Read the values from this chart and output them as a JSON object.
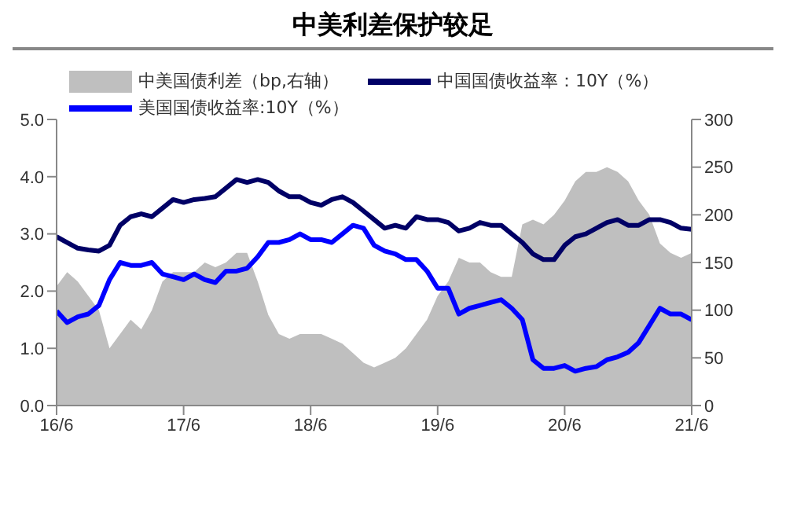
{
  "chart_data": {
    "type": "line",
    "title": "中美利差保护较足",
    "categories": [
      "16/6",
      null,
      null,
      null,
      null,
      null,
      null,
      null,
      null,
      null,
      null,
      null,
      "17/6",
      null,
      null,
      null,
      null,
      null,
      null,
      null,
      null,
      null,
      null,
      null,
      "18/6",
      null,
      null,
      null,
      null,
      null,
      null,
      null,
      null,
      null,
      null,
      null,
      "19/6",
      null,
      null,
      null,
      null,
      null,
      null,
      null,
      null,
      null,
      null,
      null,
      "20/6",
      null,
      null,
      null,
      null,
      null,
      null,
      null,
      null,
      null,
      null,
      null,
      "21/6"
    ],
    "series": [
      {
        "name": "中美国债利差（bp,右轴）",
        "type": "area",
        "axis": "y2",
        "color": "#bfbfbf",
        "values": [
          125,
          140,
          130,
          115,
          100,
          60,
          75,
          90,
          80,
          100,
          130,
          140,
          140,
          140,
          150,
          145,
          150,
          160,
          160,
          130,
          95,
          75,
          70,
          75,
          75,
          75,
          70,
          65,
          55,
          45,
          40,
          45,
          50,
          60,
          75,
          90,
          115,
          130,
          155,
          150,
          150,
          140,
          135,
          135,
          190,
          195,
          190,
          200,
          215,
          235,
          245,
          245,
          250,
          245,
          235,
          215,
          200,
          170,
          160,
          155,
          160
        ]
      },
      {
        "name": "中国国债收益率：10Y（%）",
        "color": "#000066",
        "values": [
          2.95,
          2.85,
          2.75,
          2.72,
          2.7,
          2.8,
          3.15,
          3.3,
          3.35,
          3.3,
          3.45,
          3.6,
          3.55,
          3.6,
          3.62,
          3.65,
          3.8,
          3.95,
          3.9,
          3.95,
          3.9,
          3.75,
          3.65,
          3.65,
          3.55,
          3.5,
          3.6,
          3.65,
          3.55,
          3.4,
          3.25,
          3.1,
          3.15,
          3.1,
          3.3,
          3.25,
          3.25,
          3.2,
          3.05,
          3.1,
          3.2,
          3.15,
          3.15,
          3.0,
          2.85,
          2.65,
          2.55,
          2.55,
          2.8,
          2.95,
          3.0,
          3.1,
          3.2,
          3.25,
          3.15,
          3.15,
          3.25,
          3.25,
          3.2,
          3.1,
          3.08
        ]
      },
      {
        "name": "美国国债收益率:10Y（%）",
        "color": "#0000ff",
        "values": [
          1.65,
          1.45,
          1.55,
          1.6,
          1.75,
          2.2,
          2.5,
          2.45,
          2.45,
          2.5,
          2.3,
          2.25,
          2.2,
          2.3,
          2.2,
          2.15,
          2.35,
          2.35,
          2.4,
          2.6,
          2.85,
          2.85,
          2.9,
          3.0,
          2.9,
          2.9,
          2.85,
          3.0,
          3.15,
          3.1,
          2.8,
          2.7,
          2.65,
          2.55,
          2.55,
          2.35,
          2.05,
          2.05,
          1.6,
          1.7,
          1.75,
          1.8,
          1.85,
          1.7,
          1.5,
          0.8,
          0.65,
          0.65,
          0.7,
          0.6,
          0.65,
          0.68,
          0.8,
          0.85,
          0.93,
          1.1,
          1.4,
          1.7,
          1.6,
          1.6,
          1.5
        ]
      }
    ],
    "ylim": [
      0,
      5
    ],
    "yticks": [
      {
        "value": 0,
        "label": "0.0"
      },
      {
        "value": 1,
        "label": "1.0"
      },
      {
        "value": 2,
        "label": "2.0"
      },
      {
        "value": 3,
        "label": "3.0"
      },
      {
        "value": 4,
        "label": "4.0"
      },
      {
        "value": 5,
        "label": "5.0"
      }
    ],
    "y2lim": [
      0,
      300
    ],
    "y2ticks": [
      0,
      50,
      100,
      150,
      200,
      250,
      300
    ],
    "legend": "top",
    "marker": "none",
    "line_style": "solid",
    "grid": false
  }
}
